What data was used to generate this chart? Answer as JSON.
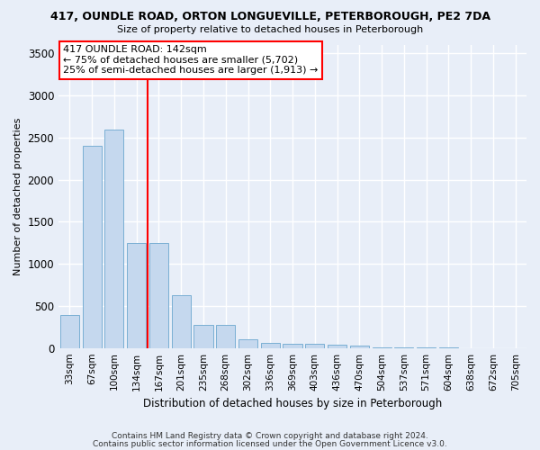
{
  "title": "417, OUNDLE ROAD, ORTON LONGUEVILLE, PETERBOROUGH, PE2 7DA",
  "subtitle": "Size of property relative to detached houses in Peterborough",
  "xlabel": "Distribution of detached houses by size in Peterborough",
  "ylabel": "Number of detached properties",
  "bar_color": "#c5d8ee",
  "bar_edge_color": "#7aafd4",
  "background_color": "#e8eef8",
  "grid_color": "#ffffff",
  "fig_bg_color": "#e8eef8",
  "categories": [
    "33sqm",
    "67sqm",
    "100sqm",
    "134sqm",
    "167sqm",
    "201sqm",
    "235sqm",
    "268sqm",
    "302sqm",
    "336sqm",
    "369sqm",
    "403sqm",
    "436sqm",
    "470sqm",
    "504sqm",
    "537sqm",
    "571sqm",
    "604sqm",
    "638sqm",
    "672sqm",
    "705sqm"
  ],
  "values": [
    390,
    2400,
    2600,
    1250,
    1250,
    625,
    275,
    275,
    100,
    65,
    55,
    50,
    40,
    30,
    6,
    4,
    3,
    2,
    1,
    1,
    0
  ],
  "ylim": [
    0,
    3600
  ],
  "yticks": [
    0,
    500,
    1000,
    1500,
    2000,
    2500,
    3000,
    3500
  ],
  "red_line_x": 3.5,
  "annotation_title": "417 OUNDLE ROAD: 142sqm",
  "annotation_line1": "← 75% of detached houses are smaller (5,702)",
  "annotation_line2": "25% of semi-detached houses are larger (1,913) →",
  "footnote1": "Contains HM Land Registry data © Crown copyright and database right 2024.",
  "footnote2": "Contains public sector information licensed under the Open Government Licence v3.0."
}
